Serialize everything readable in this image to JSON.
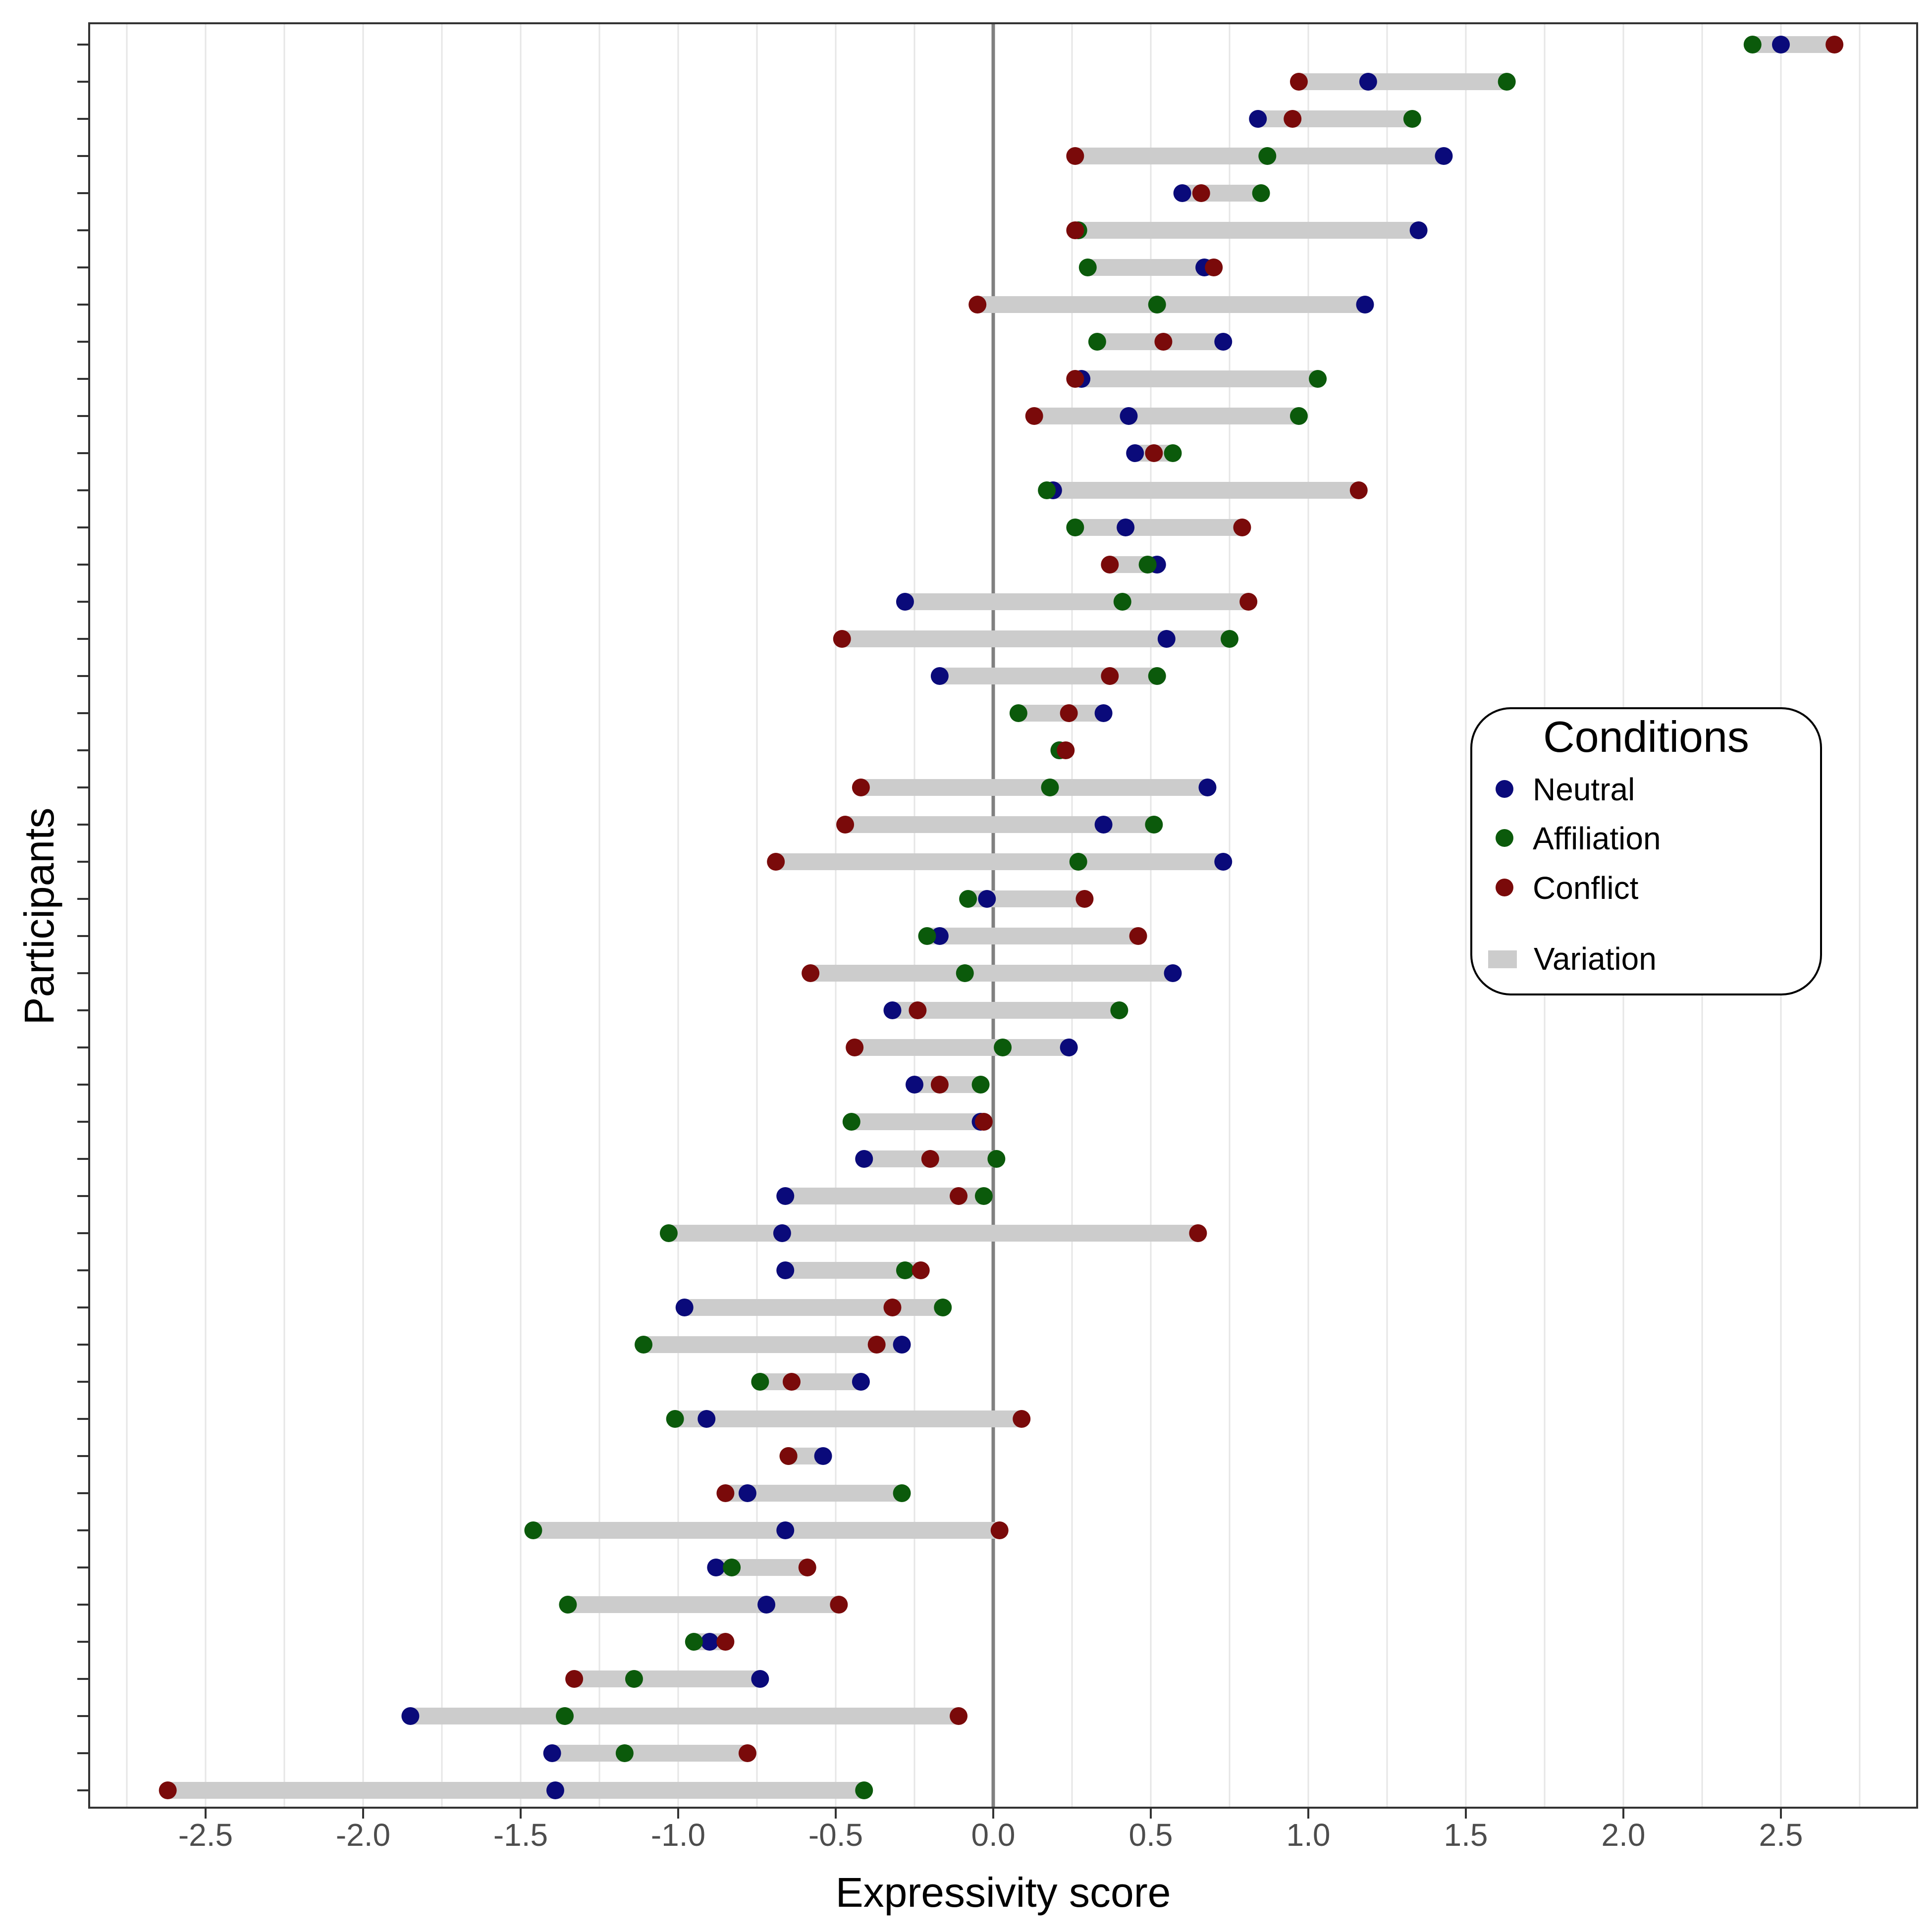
{
  "chart_data": {
    "type": "dumbbell",
    "xlabel": "Expressivity score",
    "ylabel": "Participants",
    "xlim": [
      -2.9,
      2.9
    ],
    "xticks": [
      -2.5,
      -2.0,
      -1.5,
      -1.0,
      -0.5,
      0.0,
      0.5,
      1.0,
      1.5,
      2.0,
      2.5
    ],
    "xtick_labels": [
      "-2.5",
      "-2.0",
      "-1.5",
      "-1.0",
      "-0.5",
      "0.0",
      "0.5",
      "1.0",
      "1.5",
      "2.0",
      "2.5"
    ],
    "minor_gridlines": [
      -2.75,
      -2.25,
      -1.75,
      -1.25,
      -0.75,
      -0.25,
      0.25,
      0.75,
      1.25,
      1.75,
      2.25,
      2.75
    ],
    "reference_line": 0.0,
    "legend": {
      "title": "Conditions",
      "position": "right",
      "items": [
        {
          "label": "Neutral",
          "color": "#0a0a7a",
          "kind": "point"
        },
        {
          "label": "Affiliation",
          "color": "#0b5a0b",
          "kind": "point"
        },
        {
          "label": "Conflict",
          "color": "#7a0a0a",
          "kind": "point"
        },
        {
          "label": "Variation",
          "color": "#cccccc",
          "kind": "bar"
        }
      ]
    },
    "colors": {
      "neutral": "#0a0a7a",
      "affiliation": "#0b5a0b",
      "conflict": "#7a0a0a",
      "variation": "#cccccc",
      "zero_line": "#808080",
      "grid": "#e6e6e6"
    },
    "participants": [
      {
        "neutral": 2.5,
        "affiliation": 2.41,
        "conflict": 2.67
      },
      {
        "neutral": 1.19,
        "affiliation": 1.63,
        "conflict": 0.97
      },
      {
        "neutral": 0.84,
        "affiliation": 1.33,
        "conflict": 0.95
      },
      {
        "neutral": 1.43,
        "affiliation": 0.87,
        "conflict": 0.26
      },
      {
        "neutral": 0.6,
        "affiliation": 0.85,
        "conflict": 0.66
      },
      {
        "neutral": 1.35,
        "affiliation": 0.27,
        "conflict": 0.26
      },
      {
        "neutral": 0.67,
        "affiliation": 0.3,
        "conflict": 0.7
      },
      {
        "neutral": 1.18,
        "affiliation": 0.52,
        "conflict": -0.05
      },
      {
        "neutral": 0.73,
        "affiliation": 0.33,
        "conflict": 0.54
      },
      {
        "neutral": 0.28,
        "affiliation": 1.03,
        "conflict": 0.26
      },
      {
        "neutral": 0.43,
        "affiliation": 0.97,
        "conflict": 0.13
      },
      {
        "neutral": 0.45,
        "affiliation": 0.57,
        "conflict": 0.51
      },
      {
        "neutral": 0.19,
        "affiliation": 0.17,
        "conflict": 1.16
      },
      {
        "neutral": 0.42,
        "affiliation": 0.26,
        "conflict": 0.79
      },
      {
        "neutral": 0.52,
        "affiliation": 0.49,
        "conflict": 0.37
      },
      {
        "neutral": -0.28,
        "affiliation": 0.41,
        "conflict": 0.81
      },
      {
        "neutral": 0.55,
        "affiliation": 0.75,
        "conflict": -0.48
      },
      {
        "neutral": -0.17,
        "affiliation": 0.52,
        "conflict": 0.37
      },
      {
        "neutral": 0.35,
        "affiliation": 0.08,
        "conflict": 0.24
      },
      {
        "neutral": 0.21,
        "affiliation": 0.21,
        "conflict": 0.23
      },
      {
        "neutral": 0.68,
        "affiliation": 0.18,
        "conflict": -0.42
      },
      {
        "neutral": 0.35,
        "affiliation": 0.51,
        "conflict": -0.47
      },
      {
        "neutral": 0.73,
        "affiliation": 0.27,
        "conflict": -0.69
      },
      {
        "neutral": -0.02,
        "affiliation": -0.08,
        "conflict": 0.29
      },
      {
        "neutral": -0.17,
        "affiliation": -0.21,
        "conflict": 0.46
      },
      {
        "neutral": 0.57,
        "affiliation": -0.09,
        "conflict": -0.58
      },
      {
        "neutral": -0.32,
        "affiliation": 0.4,
        "conflict": -0.24
      },
      {
        "neutral": 0.24,
        "affiliation": 0.03,
        "conflict": -0.44
      },
      {
        "neutral": -0.25,
        "affiliation": -0.04,
        "conflict": -0.17
      },
      {
        "neutral": -0.04,
        "affiliation": -0.45,
        "conflict": -0.03
      },
      {
        "neutral": -0.41,
        "affiliation": 0.01,
        "conflict": -0.2
      },
      {
        "neutral": -0.66,
        "affiliation": -0.03,
        "conflict": -0.11
      },
      {
        "neutral": -0.67,
        "affiliation": -1.03,
        "conflict": 0.65
      },
      {
        "neutral": -0.66,
        "affiliation": -0.28,
        "conflict": -0.23
      },
      {
        "neutral": -0.98,
        "affiliation": -0.16,
        "conflict": -0.32
      },
      {
        "neutral": -0.29,
        "affiliation": -1.11,
        "conflict": -0.37
      },
      {
        "neutral": -0.42,
        "affiliation": -0.74,
        "conflict": -0.64
      },
      {
        "neutral": -0.91,
        "affiliation": -1.01,
        "conflict": 0.09
      },
      {
        "neutral": -0.54,
        "affiliation": -0.65,
        "conflict": -0.65
      },
      {
        "neutral": -0.78,
        "affiliation": -0.29,
        "conflict": -0.85
      },
      {
        "neutral": -0.66,
        "affiliation": -1.46,
        "conflict": 0.02
      },
      {
        "neutral": -0.88,
        "affiliation": -0.83,
        "conflict": -0.59
      },
      {
        "neutral": -0.72,
        "affiliation": -1.35,
        "conflict": -0.49
      },
      {
        "neutral": -0.9,
        "affiliation": -0.95,
        "conflict": -0.85
      },
      {
        "neutral": -0.74,
        "affiliation": -1.14,
        "conflict": -1.33
      },
      {
        "neutral": -1.85,
        "affiliation": -1.36,
        "conflict": -0.11
      },
      {
        "neutral": -1.4,
        "affiliation": -1.17,
        "conflict": -0.78
      },
      {
        "neutral": -1.39,
        "affiliation": -0.41,
        "conflict": -2.62
      }
    ]
  }
}
